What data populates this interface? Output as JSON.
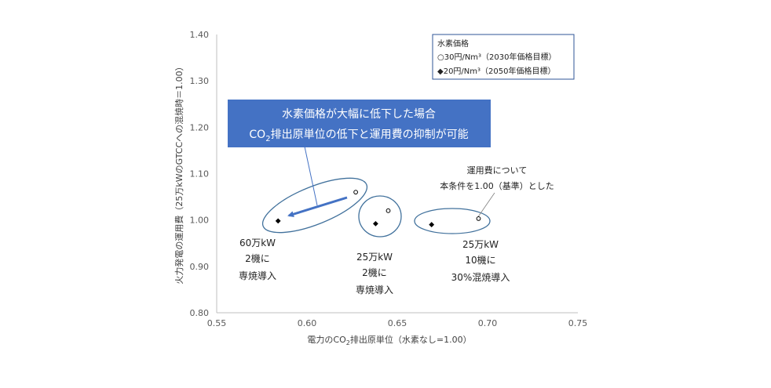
{
  "chart_data": {
    "type": "scatter",
    "xlabel_parts": [
      "電力のCO",
      "2",
      "排出原単位（水素なし=1.00）"
    ],
    "ylabel": "火力発電の運用費（25万kWのGTCCへの混焼時＝1.00）",
    "xlim": [
      0.55,
      0.75
    ],
    "ylim": [
      0.8,
      1.4
    ],
    "x_ticks": [
      "0.55",
      "0.60",
      "0.65",
      "0.70",
      "0.75"
    ],
    "y_ticks": [
      "0.80",
      "0.90",
      "1.00",
      "1.10",
      "1.20",
      "1.30",
      "1.40"
    ],
    "grid": false,
    "legend": {
      "title": "水素価格",
      "placement": "top-right",
      "entries": [
        {
          "symbol": "○",
          "label": "30円/Nm³（2030年価格目標）"
        },
        {
          "symbol": "◆",
          "label": "20円/Nm³（2050年価格目標）"
        }
      ]
    },
    "series": [
      {
        "marker": "circle",
        "points": [
          {
            "x": 0.627,
            "y": 1.06
          },
          {
            "x": 0.645,
            "y": 1.02
          },
          {
            "x": 0.695,
            "y": 1.003
          }
        ]
      },
      {
        "marker": "diamond",
        "points": [
          {
            "x": 0.584,
            "y": 0.998
          },
          {
            "x": 0.638,
            "y": 0.992
          },
          {
            "x": 0.669,
            "y": 0.99
          }
        ]
      }
    ],
    "group_labels": [
      {
        "lines": [
          "60万kW",
          "2機に",
          "専焼導入"
        ]
      },
      {
        "lines": [
          "25万kW",
          "2機に",
          "専焼導入"
        ]
      },
      {
        "lines": [
          "25万kW",
          "10機に",
          "30%混焼導入"
        ]
      }
    ],
    "annotations": {
      "callout_line1": "水素価格が大幅に低下した場合",
      "callout_line2_parts": [
        "CO",
        "2",
        "排出原単位の低下と運用費の抑制が可能"
      ],
      "note_lines": [
        "運用費について",
        "本条件を1.00（基準）とした"
      ]
    },
    "colors": {
      "axis": "#bfbfbf",
      "ellipse": "#41719c",
      "callout_fill": "#4472c4",
      "arrow": "#4472c4",
      "legend_border": "#2f5597",
      "marker": "#000000"
    }
  }
}
